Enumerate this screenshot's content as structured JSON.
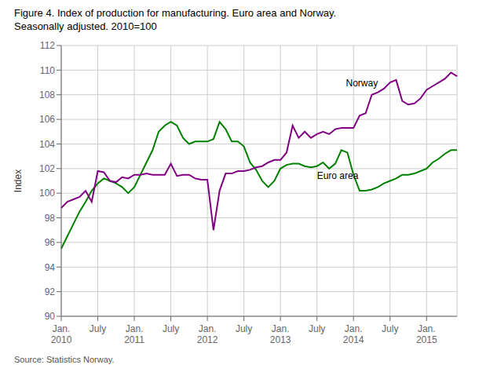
{
  "chart_data": {
    "type": "line",
    "title": "Figure 4. Index of production for manufacturing. Euro area and Norway.\nSeasonally adjusted. 2010=100",
    "ylabel": "Index",
    "source": "Source: Statistics Norway.",
    "categories": [
      "Jan.\n2010",
      null,
      null,
      null,
      null,
      null,
      "July",
      null,
      null,
      null,
      null,
      null,
      "Jan.\n2011",
      null,
      null,
      null,
      null,
      null,
      "July",
      null,
      null,
      null,
      null,
      null,
      "Jan.\n2012",
      null,
      null,
      null,
      null,
      null,
      "July",
      null,
      null,
      null,
      null,
      null,
      "Jan.\n2013",
      null,
      null,
      null,
      null,
      null,
      "July",
      null,
      null,
      null,
      null,
      null,
      "Jan.\n2014",
      null,
      null,
      null,
      null,
      null,
      "July",
      null,
      null,
      null,
      null,
      null,
      "Jan.\n2015",
      null,
      null,
      null,
      null,
      null
    ],
    "series": [
      {
        "name": "Euro area",
        "color": "#008000",
        "values": [
          95.5,
          96.5,
          97.5,
          98.5,
          99.3,
          100.2,
          100.8,
          101.2,
          101.0,
          100.8,
          100.5,
          100.0,
          100.5,
          101.5,
          102.5,
          103.5,
          105.0,
          105.5,
          105.8,
          105.5,
          104.5,
          104.0,
          104.2,
          104.2,
          104.2,
          104.4,
          105.8,
          105.2,
          104.2,
          104.2,
          103.8,
          102.5,
          101.9,
          101.0,
          100.5,
          101.0,
          102.0,
          102.3,
          102.4,
          102.4,
          102.2,
          102.1,
          102.2,
          102.5,
          102.0,
          102.4,
          103.5,
          103.3,
          101.5,
          100.2,
          100.2,
          100.3,
          100.5,
          100.8,
          101.0,
          101.2,
          101.5,
          101.5,
          101.6,
          101.8,
          102.0,
          102.5,
          102.8,
          103.2,
          103.5,
          103.5
        ]
      },
      {
        "name": "Norway",
        "color": "#800080",
        "values": [
          98.8,
          99.3,
          99.5,
          99.7,
          100.2,
          99.3,
          101.8,
          101.7,
          101.0,
          100.9,
          101.3,
          101.2,
          101.5,
          101.5,
          101.6,
          101.5,
          101.5,
          101.5,
          102.4,
          101.4,
          101.5,
          101.5,
          101.2,
          101.1,
          101.1,
          97.0,
          100.2,
          101.6,
          101.6,
          101.8,
          101.8,
          101.9,
          102.1,
          102.2,
          102.5,
          102.7,
          102.7,
          103.3,
          105.5,
          104.5,
          105.0,
          104.5,
          104.8,
          105.0,
          104.8,
          105.2,
          105.3,
          105.3,
          105.3,
          106.3,
          106.5,
          108.0,
          108.2,
          108.5,
          109.0,
          109.2,
          107.5,
          107.2,
          107.3,
          107.7,
          108.4,
          108.7,
          109.0,
          109.3,
          109.8,
          109.5
        ]
      }
    ],
    "ylim": [
      90,
      112
    ],
    "yticks": [
      90,
      92,
      94,
      96,
      98,
      100,
      102,
      104,
      106,
      108,
      110,
      112
    ],
    "grid": true
  }
}
